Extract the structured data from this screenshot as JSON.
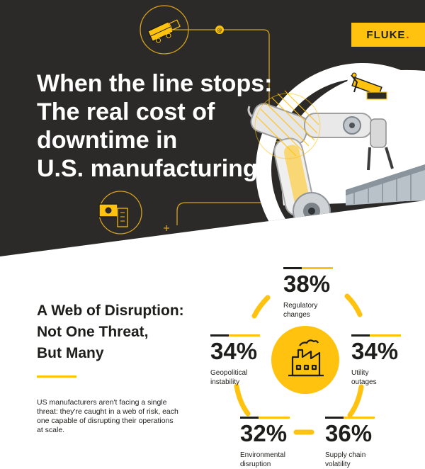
{
  "brand": {
    "name": "FLUKE",
    "dot": "."
  },
  "hero": {
    "title_lines": [
      "When the line stops:",
      "The real cost of",
      "downtime in",
      "U.S. manufacturing"
    ]
  },
  "section": {
    "title_lines": [
      "A Web of Disruption:",
      "Not One Threat,",
      "But Many"
    ],
    "intro": "US manufacturers aren't facing a single threat: they're caught in a web of risk, each one capable of disrupting their operations at scale."
  },
  "stats": [
    {
      "value": "38%",
      "label_lines": [
        "Regulatory",
        "changes"
      ]
    },
    {
      "value": "34%",
      "label_lines": [
        "Geopolitical",
        "instability"
      ]
    },
    {
      "value": "34%",
      "label_lines": [
        "Utility",
        "outages"
      ]
    },
    {
      "value": "32%",
      "label_lines": [
        "Environmental",
        "disruption"
      ]
    },
    {
      "value": "36%",
      "label_lines": [
        "Supply chain",
        "volatility"
      ]
    }
  ],
  "icons": {
    "hero": [
      "conveyor-machine-icon",
      "gear-badge-icon",
      "robot-arm-icon",
      "conveyor-line-icon"
    ],
    "center": "factory-icon"
  },
  "colors": {
    "accent": "#ffc20e",
    "dark": "#2b2a29",
    "text": "#1d1d1b",
    "brand_dot": "#e2231a"
  }
}
